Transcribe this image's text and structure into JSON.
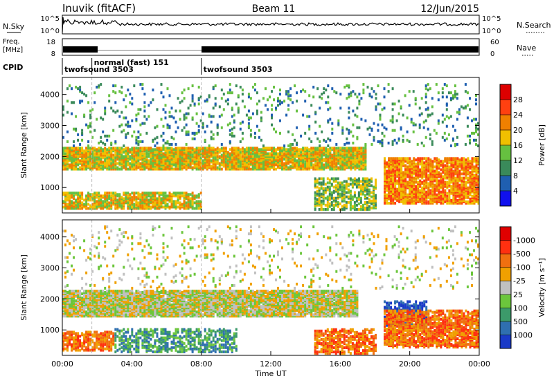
{
  "header": {
    "station": "Inuvik (fitACF)",
    "beam": "Beam 11",
    "date": "12/Jun/2015"
  },
  "nsky": {
    "left_label": "N.Sky",
    "left_tick_top": "10^5",
    "left_tick_bottom": "10^0",
    "right_label": "N.Search",
    "right_tick_top": "10^5",
    "right_tick_bottom": "10^0"
  },
  "freq": {
    "left_label_1": "Freq.",
    "left_label_2": "[MHz]",
    "left_tick_top": "18",
    "left_tick_bottom": "8",
    "right_label": "Nave",
    "right_tick_top": "60",
    "right_tick_bottom": "0"
  },
  "cpid": {
    "label": "CPID",
    "modes": [
      {
        "name": "twofsound 3503",
        "start_hr": 0.0,
        "end_hr": 1.7
      },
      {
        "name": "normal (fast) 151",
        "start_hr": 1.7,
        "end_hr": 8.0
      },
      {
        "name": "twofsound 3503",
        "start_hr": 8.0,
        "end_hr": 24.0
      }
    ]
  },
  "chart_data": [
    {
      "type": "heatmap",
      "name": "power",
      "ylabel": "Slant Range [km]",
      "yticks": [
        "1000",
        "2000",
        "3000",
        "4000"
      ],
      "ylim": [
        180,
        4550
      ],
      "xlim": [
        0,
        24
      ],
      "colorbar_label": "Power [dB]",
      "colorbar_ticks": [
        "4",
        "8",
        "12",
        "16",
        "20",
        "24",
        "28"
      ],
      "colorbar_colors": [
        "#1010ee",
        "#1f5fb0",
        "#3a8a5a",
        "#66c040",
        "#f0c000",
        "#f08000",
        "#ff4010",
        "#dd0000"
      ],
      "bands": [
        {
          "t0": 0.0,
          "t1": 17.5,
          "r0": 1550,
          "r1": 2250,
          "level": 4,
          "density": 0.85
        },
        {
          "t0": 0.0,
          "t1": 8.0,
          "r0": 280,
          "r1": 800,
          "level": 4,
          "density": 0.7
        },
        {
          "t0": 18.5,
          "t1": 24.0,
          "r0": 450,
          "r1": 1900,
          "level": 5,
          "density": 0.75
        },
        {
          "t0": 14.5,
          "t1": 18.0,
          "r0": 250,
          "r1": 1250,
          "level": 3,
          "density": 0.55
        },
        {
          "t0": 0.0,
          "t1": 24.0,
          "r0": 2300,
          "r1": 4300,
          "level": 2,
          "density": 0.08
        }
      ]
    },
    {
      "type": "heatmap",
      "name": "velocity",
      "ylabel": "Slant Range [km]",
      "yticks": [
        "1000",
        "2000",
        "3000",
        "4000"
      ],
      "ylim": [
        180,
        4550
      ],
      "xlim": [
        0,
        24
      ],
      "xlabel": "Time UT",
      "xticks": [
        "00:00",
        "04:00",
        "08:00",
        "12:00",
        "16:00",
        "20:00",
        "00:00"
      ],
      "colorbar_label": "Velocity [m s⁻¹]",
      "colorbar_ticks": [
        "1000",
        "500",
        "100",
        "25",
        "-25",
        "-100",
        "-500",
        "-1000"
      ],
      "colorbar_colors": [
        "#1a3ac8",
        "#2f6fb0",
        "#3c9a6a",
        "#6cc63c",
        "#c0c0c0",
        "#f0a000",
        "#f07010",
        "#ff3010",
        "#e00000"
      ],
      "bands": [
        {
          "t0": 0.0,
          "t1": 17.0,
          "r0": 1400,
          "r1": 2250,
          "level": 4,
          "density": 0.9
        },
        {
          "t0": 0.0,
          "t1": 3.0,
          "r0": 300,
          "r1": 900,
          "level": 6,
          "density": 0.6
        },
        {
          "t0": 3.0,
          "t1": 10.0,
          "r0": 250,
          "r1": 1000,
          "level": 2,
          "density": 0.45
        },
        {
          "t0": 18.5,
          "t1": 21.0,
          "r0": 1100,
          "r1": 1900,
          "level": 0,
          "density": 0.6
        },
        {
          "t0": 18.5,
          "t1": 24.0,
          "r0": 400,
          "r1": 1600,
          "level": 6,
          "density": 0.7
        },
        {
          "t0": 14.5,
          "t1": 18.0,
          "r0": 200,
          "r1": 1000,
          "level": 6,
          "density": 0.6
        },
        {
          "t0": 0.0,
          "t1": 24.0,
          "r0": 2300,
          "r1": 4300,
          "level": 4,
          "density": 0.06
        }
      ]
    }
  ]
}
